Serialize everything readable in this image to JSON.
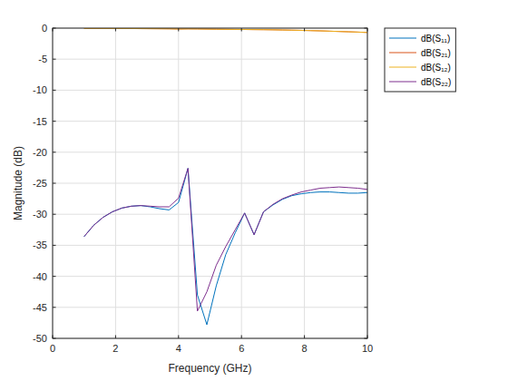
{
  "chart_data": {
    "type": "line",
    "x_label": "Frequency (GHz)",
    "y_label": "Magnitude (dB)",
    "x": [
      1,
      1.3,
      1.6,
      1.9,
      2.2,
      2.5,
      2.8,
      3.1,
      3.4,
      3.7,
      4.0,
      4.3,
      4.6,
      4.9,
      5.2,
      5.5,
      5.8,
      6.1,
      6.4,
      6.7,
      7.0,
      7.3,
      7.6,
      7.9,
      8.2,
      8.5,
      8.8,
      9.1,
      9.4,
      9.7,
      10
    ],
    "series": [
      {
        "name": "dB(S₁₁)",
        "color": "#0072BD",
        "values": [
          -33.6,
          -31.8,
          -30.5,
          -29.6,
          -29.0,
          -28.7,
          -28.6,
          -28.8,
          -29.1,
          -29.3,
          -28.1,
          -22.6,
          -43.0,
          -47.8,
          -41.5,
          -36.5,
          -33.0,
          -29.8,
          -33.3,
          -29.6,
          -28.5,
          -27.6,
          -27.0,
          -26.7,
          -26.5,
          -26.4,
          -26.4,
          -26.5,
          -26.6,
          -26.6,
          -26.5
        ]
      },
      {
        "name": "dB(S₂₁)",
        "color": "#D95319",
        "values": [
          -0.05,
          -0.05,
          -0.06,
          -0.06,
          -0.07,
          -0.07,
          -0.08,
          -0.09,
          -0.1,
          -0.11,
          -0.14,
          -0.12,
          -0.13,
          -0.15,
          -0.17,
          -0.19,
          -0.21,
          -0.22,
          -0.24,
          -0.25,
          -0.27,
          -0.3,
          -0.33,
          -0.36,
          -0.4,
          -0.44,
          -0.49,
          -0.54,
          -0.59,
          -0.64,
          -0.7
        ]
      },
      {
        "name": "dB(S₁₂)",
        "color": "#EDB120",
        "values": [
          -0.05,
          -0.05,
          -0.06,
          -0.06,
          -0.07,
          -0.07,
          -0.08,
          -0.09,
          -0.1,
          -0.11,
          -0.14,
          -0.12,
          -0.13,
          -0.15,
          -0.17,
          -0.19,
          -0.21,
          -0.22,
          -0.24,
          -0.25,
          -0.27,
          -0.3,
          -0.33,
          -0.36,
          -0.4,
          -0.44,
          -0.49,
          -0.54,
          -0.59,
          -0.64,
          -0.7
        ]
      },
      {
        "name": "dB(S₂₂)",
        "color": "#7E2F8E",
        "values": [
          -33.6,
          -31.8,
          -30.5,
          -29.6,
          -29.0,
          -28.7,
          -28.6,
          -28.7,
          -28.8,
          -28.8,
          -27.4,
          -22.6,
          -45.6,
          -42.5,
          -38.2,
          -35.2,
          -32.5,
          -29.8,
          -33.3,
          -29.6,
          -28.4,
          -27.5,
          -26.9,
          -26.4,
          -26.1,
          -25.8,
          -25.7,
          -25.6,
          -25.7,
          -25.8,
          -26.0
        ]
      }
    ],
    "xlim": [
      0,
      10
    ],
    "xticks": [
      0,
      2,
      4,
      6,
      8,
      10
    ],
    "ylim": [
      -50,
      0
    ],
    "yticks": [
      -50,
      -45,
      -40,
      -35,
      -30,
      -25,
      -20,
      -15,
      -10,
      -5,
      0
    ],
    "grid": true,
    "legend": "northeastoutside"
  }
}
